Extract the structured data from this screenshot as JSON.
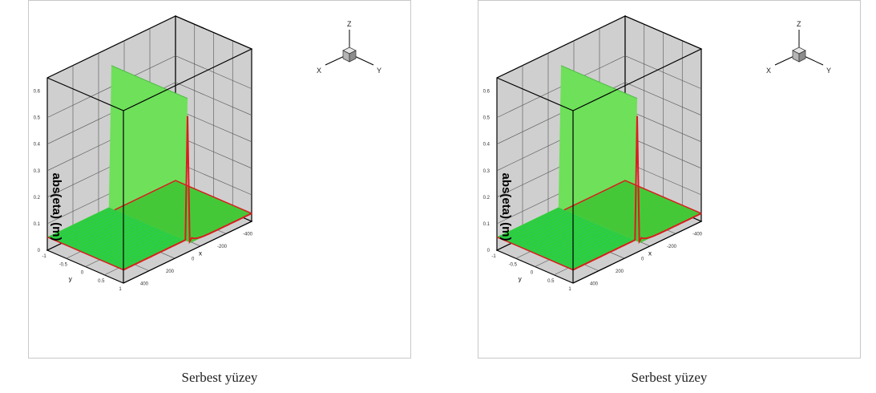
{
  "figures": [
    {
      "caption": "Serbest yüzey"
    },
    {
      "caption": "Serbest yüzey"
    }
  ],
  "triad": {
    "z": "Z",
    "x": "X",
    "y": "Y"
  },
  "chart_data": [
    {
      "type": "surface",
      "ylabel": "abs(eta) (m)",
      "x_axis_label": "x",
      "y_axis_label": "y",
      "z_ticks": [
        "0",
        "0.1",
        "0.2",
        "0.3",
        "0.4",
        "0.5",
        "0.6"
      ],
      "x_ticks": [
        "-400",
        "-200",
        "0",
        "200",
        "400"
      ],
      "y_ticks": [
        "-1",
        "-0.5",
        "0",
        "0.5",
        "1"
      ],
      "zlim": [
        0,
        0.65
      ],
      "xlim": [
        -500,
        500
      ],
      "ylim": [
        -1,
        1
      ],
      "grid": true,
      "colors": {
        "surface": "#2fcf3a",
        "surface_light": "#6ee05a",
        "stripe": "#1fb8a0",
        "edge": "#d81e1e",
        "wall": "#cfcfcf"
      }
    },
    {
      "type": "surface",
      "ylabel": "abs(eta) (m)",
      "x_axis_label": "x",
      "y_axis_label": "y",
      "z_ticks": [
        "0",
        "0.1",
        "0.2",
        "0.3",
        "0.4",
        "0.5",
        "0.6"
      ],
      "x_ticks": [
        "-400",
        "-200",
        "0",
        "200",
        "400"
      ],
      "y_ticks": [
        "-1",
        "-0.5",
        "0",
        "0.5",
        "1"
      ],
      "zlim": [
        0,
        0.65
      ],
      "xlim": [
        -500,
        500
      ],
      "ylim": [
        -1,
        1
      ],
      "grid": true,
      "colors": {
        "surface": "#2fcf3a",
        "surface_light": "#6ee05a",
        "stripe": "#1fb8a0",
        "edge": "#d81e1e",
        "wall": "#cfcfcf"
      }
    }
  ]
}
